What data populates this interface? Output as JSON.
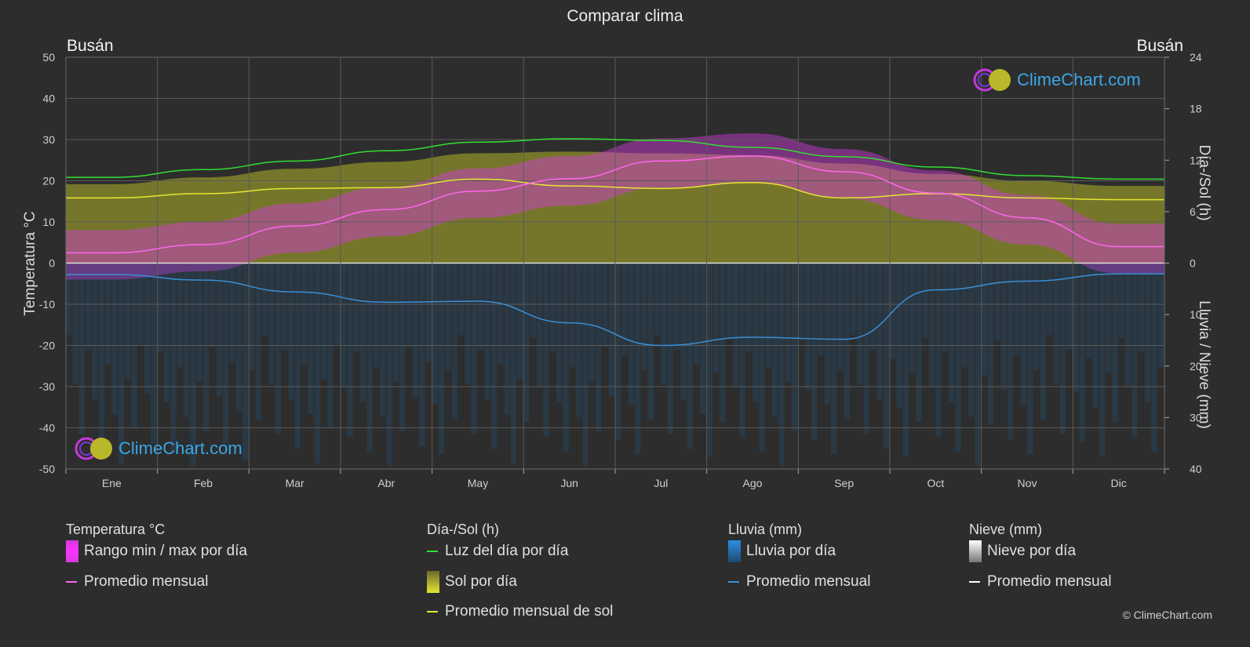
{
  "title": "Comparar clima",
  "city_left": "Busán",
  "city_right": "Busán",
  "logo_text": "ClimeChart.com",
  "copyright": "© ClimeChart.com",
  "colors": {
    "daylight": "#33dd33",
    "sunshine_avg": "#e6e633",
    "temp_avg": "#ff66ee",
    "rain_avg": "#3a8fd6",
    "temp_band": "#d63adf",
    "sun_band": "#8f8f2a",
    "rain_band": "#1f5a85"
  },
  "legend": {
    "temperature": {
      "heading": "Temperatura °C",
      "range": "Rango min / max por día",
      "avg": "Promedio mensual"
    },
    "sun": {
      "heading": "Día-/Sol (h)",
      "daylight": "Luz del día por día",
      "sun_per_day": "Sol por día",
      "sun_avg": "Promedio mensual de sol"
    },
    "rain": {
      "heading": "Lluvia (mm)",
      "rain_per_day": "Lluvia por día",
      "avg": "Promedio mensual"
    },
    "snow": {
      "heading": "Nieve (mm)",
      "snow_per_day": "Nieve por día",
      "avg": "Promedio mensual"
    }
  },
  "chart_data": {
    "type": "line",
    "categories": [
      "Ene",
      "Feb",
      "Mar",
      "Abr",
      "May",
      "Jun",
      "Jul",
      "Ago",
      "Sep",
      "Oct",
      "Nov",
      "Dic"
    ],
    "y_left": {
      "label": "Temperatura °C",
      "range": [
        -50,
        50
      ],
      "ticks": [
        50,
        40,
        30,
        20,
        10,
        0,
        -10,
        -20,
        -30,
        -40,
        -50
      ]
    },
    "y_right_top": {
      "label": "Día-/Sol (h)",
      "range": [
        0,
        24
      ],
      "ticks": [
        24,
        18,
        12,
        6,
        0
      ]
    },
    "y_right_bottom": {
      "label": "Lluvia / Nieve (mm)",
      "range": [
        0,
        40
      ],
      "ticks": [
        0,
        10,
        20,
        30,
        40
      ]
    },
    "grid": true,
    "series": [
      {
        "name": "Luz del día por día",
        "axis": "hours",
        "values": [
          10.0,
          10.9,
          11.9,
          13.1,
          14.1,
          14.5,
          14.3,
          13.5,
          12.4,
          11.2,
          10.2,
          9.8
        ]
      },
      {
        "name": "Sol por día",
        "axis": "hours",
        "values": [
          9.2,
          10.0,
          11.0,
          11.8,
          12.8,
          13.0,
          12.8,
          12.6,
          11.6,
          10.4,
          9.6,
          9.0
        ]
      },
      {
        "name": "Promedio mensual de sol",
        "axis": "hours",
        "values": [
          7.6,
          8.1,
          8.7,
          8.8,
          9.8,
          9.0,
          8.7,
          9.4,
          7.6,
          8.1,
          7.6,
          7.4
        ]
      },
      {
        "name": "Promedio mensual",
        "axis": "temperature",
        "values": [
          2.5,
          4.5,
          9.0,
          13.0,
          17.5,
          20.5,
          24.8,
          26.0,
          22.2,
          17.0,
          11.0,
          4.0
        ]
      },
      {
        "name": "Promedio mensual",
        "axis": "rain_mm",
        "values": [
          2.2,
          3.3,
          5.6,
          7.6,
          7.4,
          11.6,
          16.0,
          14.4,
          14.8,
          5.2,
          3.5,
          2.1
        ]
      }
    ]
  }
}
